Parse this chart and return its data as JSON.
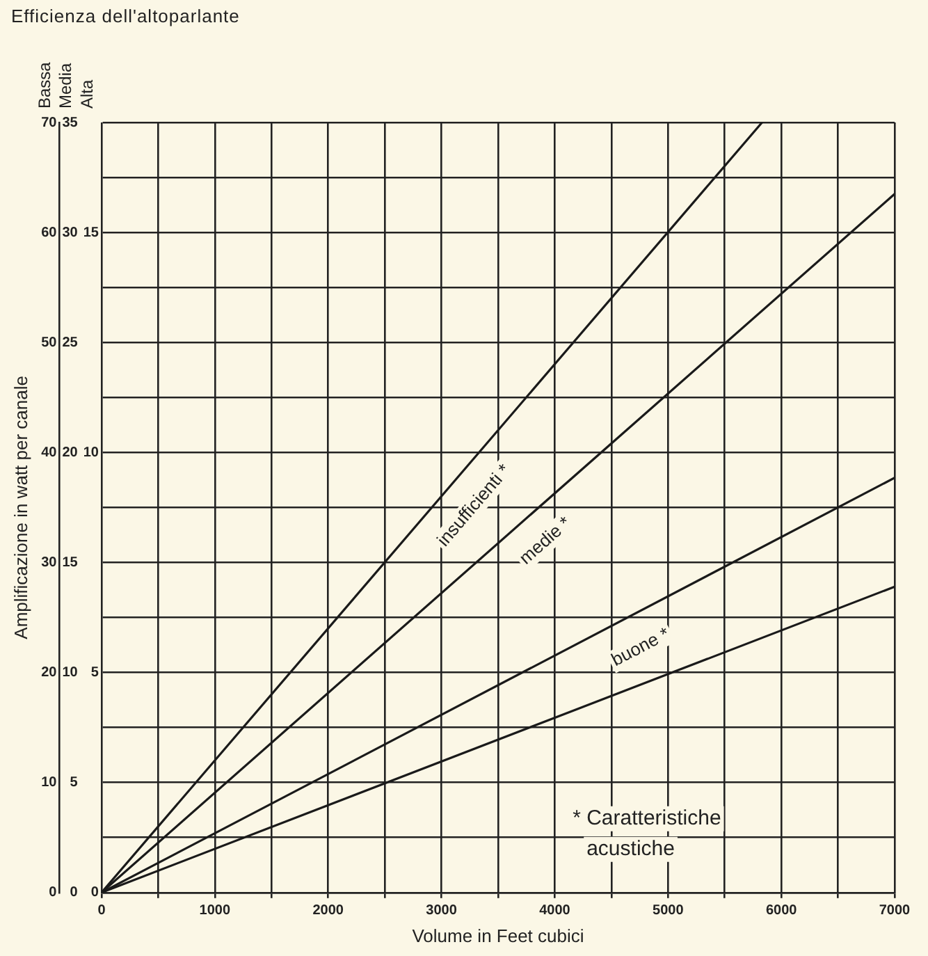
{
  "chart_data": {
    "type": "line",
    "title": "Efficienza dell'altoparlante",
    "xlabel": "Volume in Feet cubici",
    "ylabel": "Amplificazione in watt per canale",
    "series": [
      {
        "color": "#1a1a1a",
        "x": [
          0,
          5830
        ],
        "values": [
          0,
          70
        ]
      },
      {
        "color": "#1a1a1a",
        "x": [
          0,
          7000
        ],
        "values": [
          0,
          63.5
        ]
      },
      {
        "color": "#1a1a1a",
        "x": [
          0,
          7000
        ],
        "values": [
          0,
          37.7
        ]
      },
      {
        "color": "#1a1a1a",
        "x": [
          0,
          7000
        ],
        "values": [
          0,
          27.8
        ]
      }
    ],
    "xlim": [
      0,
      7000
    ],
    "xticks": [
      0,
      {
        "value": 500,
        "label": null
      },
      1000,
      {
        "value": 1500,
        "label": null
      },
      2000,
      {
        "value": 2500,
        "label": null
      },
      3000,
      {
        "value": 3500,
        "label": null
      },
      4000,
      {
        "value": 4500,
        "label": null
      },
      5000,
      {
        "value": 5500,
        "label": null
      },
      6000,
      {
        "value": 6500,
        "label": null
      },
      7000
    ],
    "ylim": [
      0,
      70
    ],
    "yticks": [
      0,
      {
        "value": 5,
        "label": null
      },
      10,
      {
        "value": 15,
        "label": null
      },
      20,
      {
        "value": 25,
        "label": null
      },
      30,
      {
        "value": 35,
        "label": null
      },
      40,
      {
        "value": 45,
        "label": null
      },
      50,
      {
        "value": 55,
        "label": null
      },
      60,
      {
        "value": 65,
        "label": null
      },
      70
    ],
    "y2lim": [
      0,
      35
    ],
    "y2ticks": [
      0,
      5,
      10,
      15,
      20,
      25,
      30,
      35
    ],
    "y3lim": [
      0,
      17.5
    ],
    "y3ticks": [
      0,
      5,
      10,
      15
    ],
    "annotations": [
      "Bassa",
      "Media",
      "Alta",
      "* Caratteristiche acustiche",
      "insufficienti *",
      "medie *",
      "buone *"
    ],
    "grid": true,
    "marker": "none",
    "line_style": "solid"
  }
}
